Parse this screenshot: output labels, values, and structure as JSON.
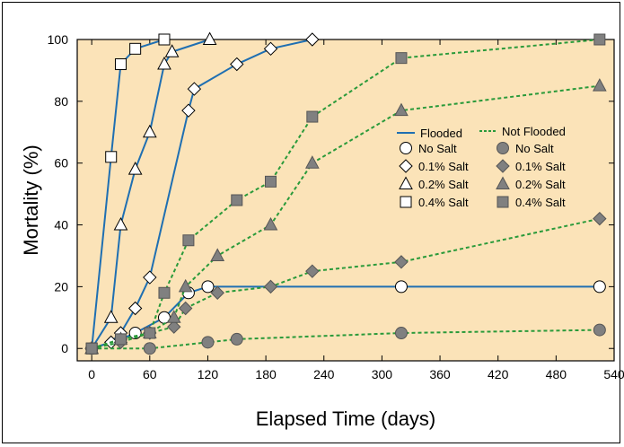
{
  "chart_data": {
    "type": "line",
    "title": "",
    "xlabel": "Elapsed Time (days)",
    "ylabel": "Mortality (%)",
    "xlim": [
      -15,
      540
    ],
    "ylim": [
      -4,
      100
    ],
    "xticks": [
      0,
      60,
      120,
      180,
      240,
      300,
      360,
      420,
      480,
      540
    ],
    "yticks": [
      0,
      20,
      40,
      60,
      80,
      100
    ],
    "plot_background": "#fbe3b8",
    "grid": false,
    "legend_position": "right-center",
    "legend": {
      "flooded_label": "Flooded",
      "not_flooded_label": "Not Flooded",
      "entries": [
        "No Salt",
        "0.1% Salt",
        "0.2% Salt",
        "0.4% Salt"
      ]
    },
    "colors": {
      "flooded": "#1f6fb2",
      "not_flooded": "#2a9a3a",
      "filled_marker": "#808080"
    },
    "series": [
      {
        "name": "No Salt",
        "group": "Flooded",
        "marker": "circle",
        "filled": false,
        "points": [
          [
            0,
            0
          ],
          [
            30,
            3
          ],
          [
            45,
            5
          ],
          [
            75,
            10
          ],
          [
            100,
            18
          ],
          [
            120,
            20
          ],
          [
            320,
            20
          ],
          [
            525,
            20
          ]
        ]
      },
      {
        "name": "0.1% Salt",
        "group": "Flooded",
        "marker": "diamond",
        "filled": false,
        "points": [
          [
            0,
            0
          ],
          [
            20,
            2
          ],
          [
            30,
            5
          ],
          [
            45,
            13
          ],
          [
            60,
            23
          ],
          [
            100,
            77
          ],
          [
            106,
            84
          ],
          [
            150,
            92
          ],
          [
            185,
            97
          ],
          [
            228,
            100
          ]
        ]
      },
      {
        "name": "0.2% Salt",
        "group": "Flooded",
        "marker": "triangle",
        "filled": false,
        "points": [
          [
            0,
            0
          ],
          [
            20,
            10
          ],
          [
            30,
            40
          ],
          [
            45,
            58
          ],
          [
            60,
            70
          ],
          [
            75,
            92
          ],
          [
            83,
            96
          ],
          [
            122,
            100
          ]
        ]
      },
      {
        "name": "0.4% Salt",
        "group": "Flooded",
        "marker": "square",
        "filled": false,
        "points": [
          [
            0,
            0
          ],
          [
            20,
            62
          ],
          [
            30,
            92
          ],
          [
            45,
            97
          ],
          [
            75,
            100
          ]
        ]
      },
      {
        "name": "No Salt",
        "group": "Not Flooded",
        "marker": "circle",
        "filled": true,
        "points": [
          [
            0,
            0
          ],
          [
            60,
            0
          ],
          [
            120,
            2
          ],
          [
            150,
            3
          ],
          [
            320,
            5
          ],
          [
            525,
            6
          ]
        ]
      },
      {
        "name": "0.1% Salt",
        "group": "Not Flooded",
        "marker": "diamond",
        "filled": true,
        "points": [
          [
            0,
            0
          ],
          [
            30,
            2
          ],
          [
            60,
            5
          ],
          [
            85,
            7
          ],
          [
            97,
            13
          ],
          [
            130,
            18
          ],
          [
            185,
            20
          ],
          [
            228,
            25
          ],
          [
            320,
            28
          ],
          [
            525,
            42
          ]
        ]
      },
      {
        "name": "0.2% Salt",
        "group": "Not Flooded",
        "marker": "triangle",
        "filled": true,
        "points": [
          [
            0,
            0
          ],
          [
            30,
            3
          ],
          [
            60,
            5
          ],
          [
            85,
            10
          ],
          [
            97,
            20
          ],
          [
            130,
            30
          ],
          [
            185,
            40
          ],
          [
            228,
            60
          ],
          [
            320,
            77
          ],
          [
            525,
            85
          ]
        ]
      },
      {
        "name": "0.4% Salt",
        "group": "Not Flooded",
        "marker": "square",
        "filled": true,
        "points": [
          [
            0,
            0
          ],
          [
            30,
            3
          ],
          [
            60,
            5
          ],
          [
            75,
            18
          ],
          [
            100,
            35
          ],
          [
            150,
            48
          ],
          [
            185,
            54
          ],
          [
            228,
            75
          ],
          [
            320,
            94
          ],
          [
            525,
            100
          ]
        ]
      }
    ]
  }
}
